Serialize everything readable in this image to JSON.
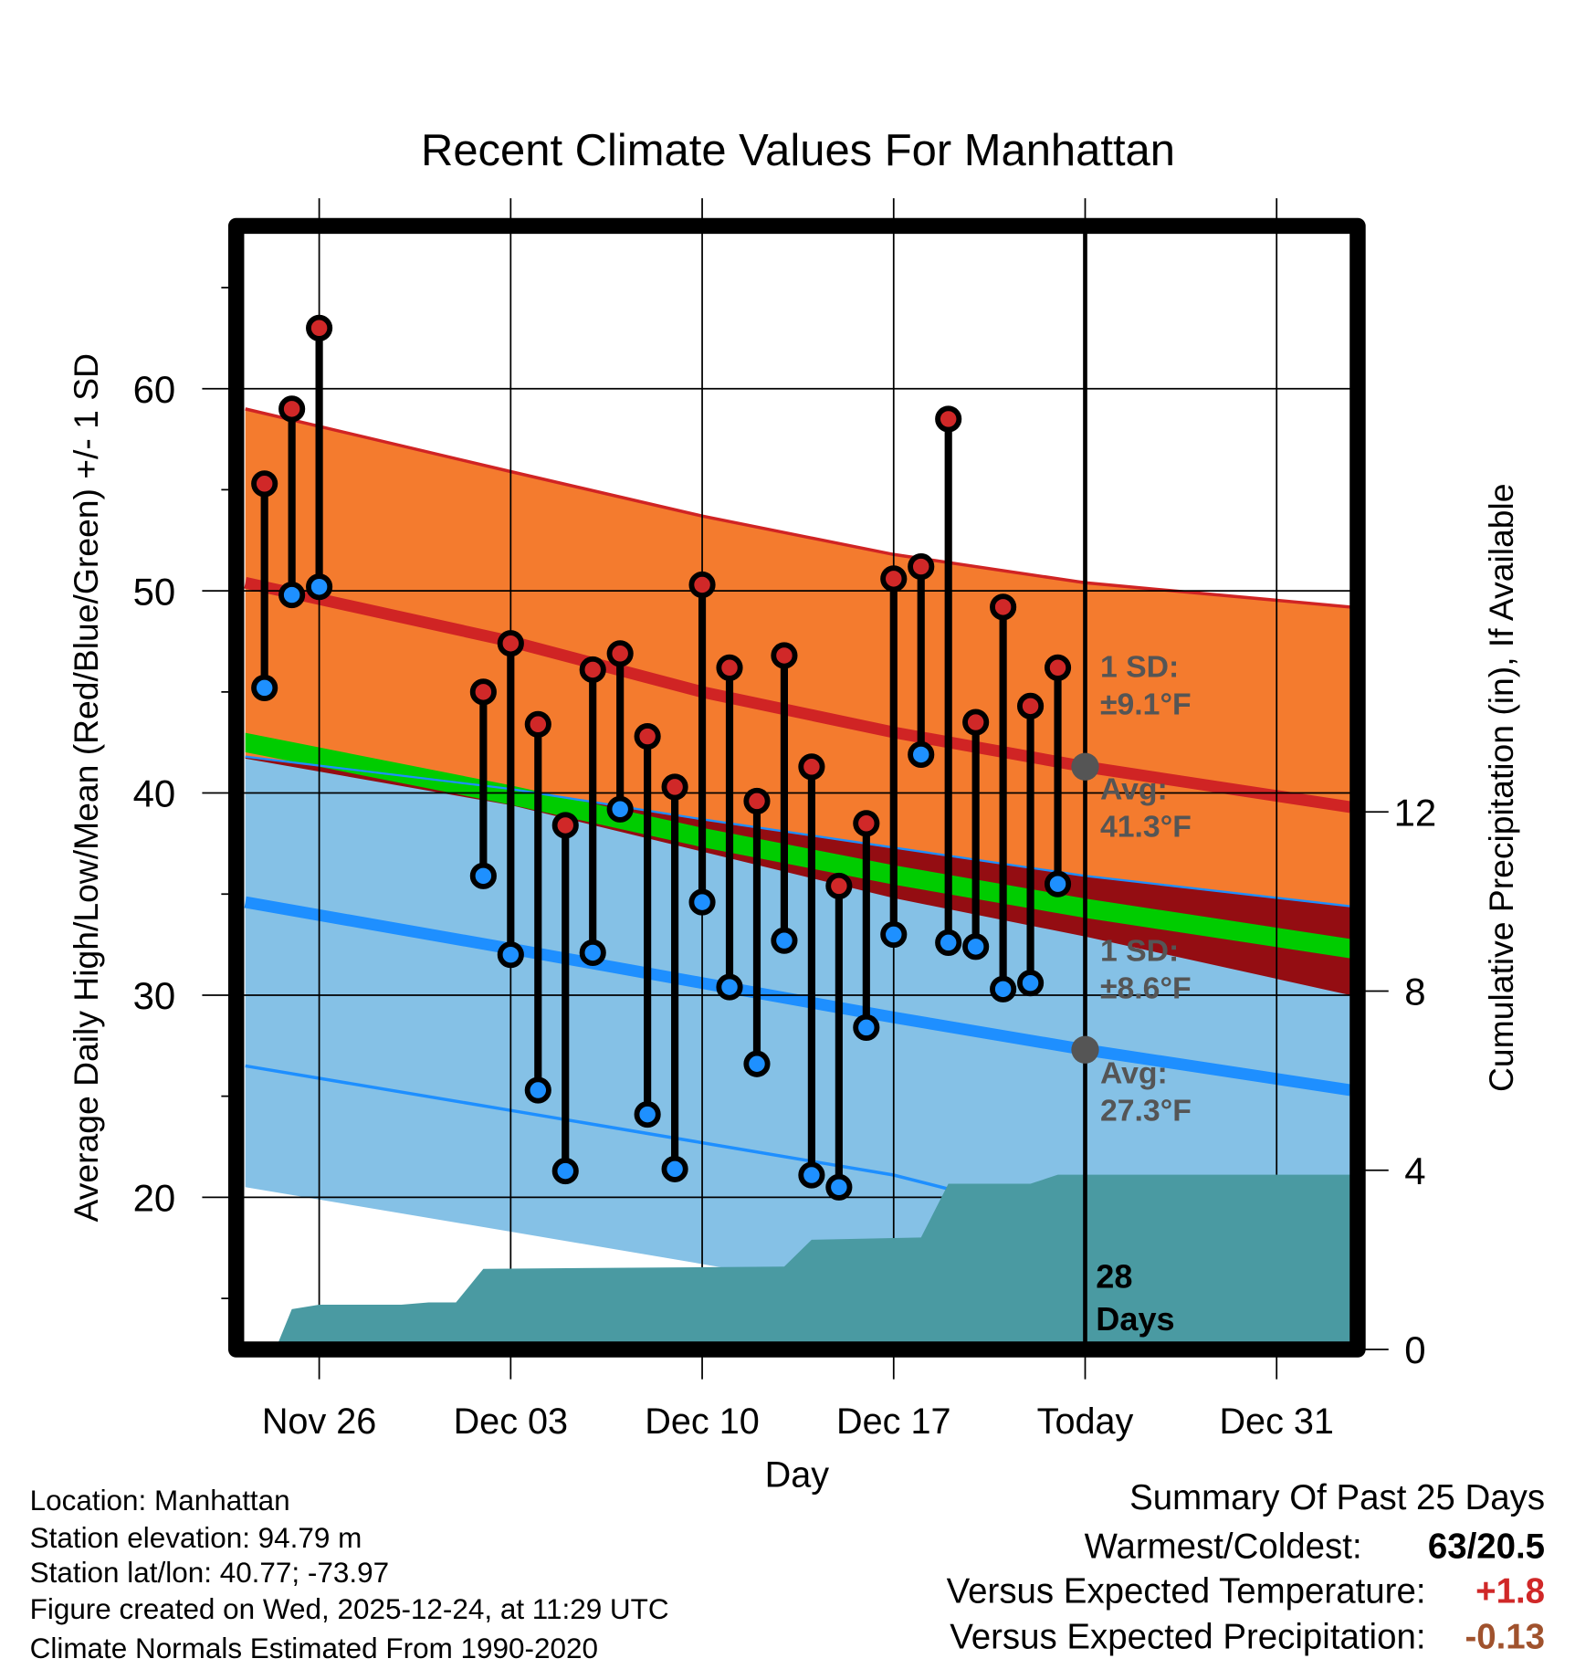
{
  "chart_data": {
    "type": "line",
    "title": "Recent Climate Values For Manhattan",
    "xlabel": "Day",
    "ylabel": "Average Daily High/Low/Mean (Red/Blue/Green) +/- 1 SD",
    "ylabel_right": "Cumulative Precipitation (in), If Available",
    "x_unit": "days since Nov 26",
    "x_ticks": [
      {
        "day": 0,
        "label": "Nov 26"
      },
      {
        "day": 7,
        "label": "Dec 03"
      },
      {
        "day": 14,
        "label": "Dec 10"
      },
      {
        "day": 21,
        "label": "Dec 17"
      },
      {
        "day": 28,
        "label": "Today"
      },
      {
        "day": 35,
        "label": "Dec 31"
      }
    ],
    "xlim": [
      -2.7,
      37.7
    ],
    "ylim": [
      12.9,
      67.6
    ],
    "y_ticks": [
      20,
      30,
      40,
      50,
      60
    ],
    "y_minor_ticks": [
      15,
      25,
      35,
      45,
      55,
      65
    ],
    "y2_ticks": [
      0,
      4,
      8,
      12
    ],
    "today_day": 28,
    "observed": [
      {
        "day": -2,
        "date": "Nov 24",
        "high": 55.3,
        "low": 45.2
      },
      {
        "day": -1,
        "date": "Nov 25",
        "high": 59.0,
        "low": 49.8
      },
      {
        "day": 0,
        "date": "Nov 26",
        "high": 63.0,
        "low": 50.2
      },
      {
        "day": 6,
        "date": "Dec 02",
        "high": 45.0,
        "low": 35.9
      },
      {
        "day": 7,
        "date": "Dec 03",
        "high": 47.4,
        "low": 32.0
      },
      {
        "day": 8,
        "date": "Dec 04",
        "high": 43.4,
        "low": 25.3
      },
      {
        "day": 9,
        "date": "Dec 05",
        "high": 38.4,
        "low": 21.3
      },
      {
        "day": 10,
        "date": "Dec 06",
        "high": 46.1,
        "low": 32.1
      },
      {
        "day": 11,
        "date": "Dec 07",
        "high": 46.9,
        "low": 39.2
      },
      {
        "day": 12,
        "date": "Dec 08",
        "high": 42.8,
        "low": 24.1
      },
      {
        "day": 13,
        "date": "Dec 09",
        "high": 40.3,
        "low": 21.4
      },
      {
        "day": 14,
        "date": "Dec 10",
        "high": 50.3,
        "low": 34.6
      },
      {
        "day": 15,
        "date": "Dec 11",
        "high": 46.2,
        "low": 30.4
      },
      {
        "day": 16,
        "date": "Dec 12",
        "high": 39.6,
        "low": 26.6
      },
      {
        "day": 17,
        "date": "Dec 13",
        "high": 46.8,
        "low": 32.7
      },
      {
        "day": 18,
        "date": "Dec 14",
        "high": 41.3,
        "low": 21.1
      },
      {
        "day": 19,
        "date": "Dec 15",
        "high": 35.4,
        "low": 20.5
      },
      {
        "day": 20,
        "date": "Dec 16",
        "high": 38.5,
        "low": 28.4
      },
      {
        "day": 21,
        "date": "Dec 17",
        "high": 50.6,
        "low": 33.0
      },
      {
        "day": 22,
        "date": "Dec 18",
        "high": 51.2,
        "low": 41.9
      },
      {
        "day": 23,
        "date": "Dec 19",
        "high": 58.5,
        "low": 32.6
      },
      {
        "day": 24,
        "date": "Dec 20",
        "high": 43.5,
        "low": 32.4
      },
      {
        "day": 25,
        "date": "Dec 21",
        "high": 49.2,
        "low": 30.3
      },
      {
        "day": 26,
        "date": "Dec 22",
        "high": 44.3,
        "low": 30.6
      },
      {
        "day": 27,
        "date": "Dec 23",
        "high": 46.2,
        "low": 35.5
      }
    ],
    "normals": {
      "days": [
        -2.7,
        7,
        14,
        21,
        28,
        37.7
      ],
      "high_avg": [
        50.4,
        47.5,
        45.0,
        43.0,
        41.3,
        39.3
      ],
      "high_upper": [
        59.0,
        55.9,
        53.7,
        51.8,
        50.4,
        49.2
      ],
      "high_lower": [
        41.7,
        39.4,
        37.1,
        34.8,
        32.9,
        30.0
      ],
      "low_avg": [
        34.6,
        32.3,
        30.6,
        28.9,
        27.3,
        25.3
      ],
      "low_upper": [
        41.8,
        40.2,
        38.7,
        37.3,
        35.9,
        34.4
      ],
      "low_lower": [
        26.5,
        24.3,
        22.7,
        21.1,
        18.7,
        17.0
      ]
    },
    "precip_cumulative": {
      "days": [
        -1.6,
        -1,
        0,
        3,
        4,
        5,
        6,
        17,
        18,
        22,
        23,
        26,
        27,
        37.7
      ],
      "values": [
        0,
        0.9,
        1.0,
        1.0,
        1.05,
        1.05,
        1.8,
        1.85,
        2.45,
        2.5,
        3.7,
        3.7,
        3.9,
        3.9
      ]
    },
    "annotations": {
      "high_sd": "1 SD:",
      "high_sd_val": "±9.1°F",
      "high_avg": "Avg:",
      "high_avg_val": "41.3°F",
      "high_avg_num": 41.3,
      "low_sd": "1 SD:",
      "low_sd_val": "±8.6°F",
      "low_avg": "Avg:",
      "low_avg_val": "27.3°F",
      "low_avg_num": 27.3,
      "days_num": "28",
      "days_word": "Days"
    },
    "colors": {
      "high_band": "#f47b2e",
      "high_line": "#d02424",
      "low_band": "#85c1e6",
      "low_line": "#1e8fff",
      "mean": "#00cc00",
      "overlap": "#940d12",
      "precip": "#4a9aa2",
      "high_point": "#d02828",
      "low_point": "#1e90ff",
      "annotation": "#555555"
    }
  },
  "info": {
    "lines": [
      "Location: Manhattan",
      "Station elevation: 94.79 m",
      "Station lat/lon: 40.77; -73.97",
      "Figure created on Wed, 2025-12-24, at 11:29 UTC",
      "Climate Normals Estimated From 1990-2020"
    ]
  },
  "summary": {
    "title": "Summary Of Past 25 Days",
    "rows": [
      {
        "label": "Warmest/Coldest:",
        "value": "63/20.5",
        "color": "#000000"
      },
      {
        "label": "Versus Expected Temperature:",
        "value": "+1.8",
        "color": "#d02828"
      },
      {
        "label": "Versus Expected Precipitation:",
        "value": "-0.13",
        "color": "#a0522d"
      }
    ]
  }
}
